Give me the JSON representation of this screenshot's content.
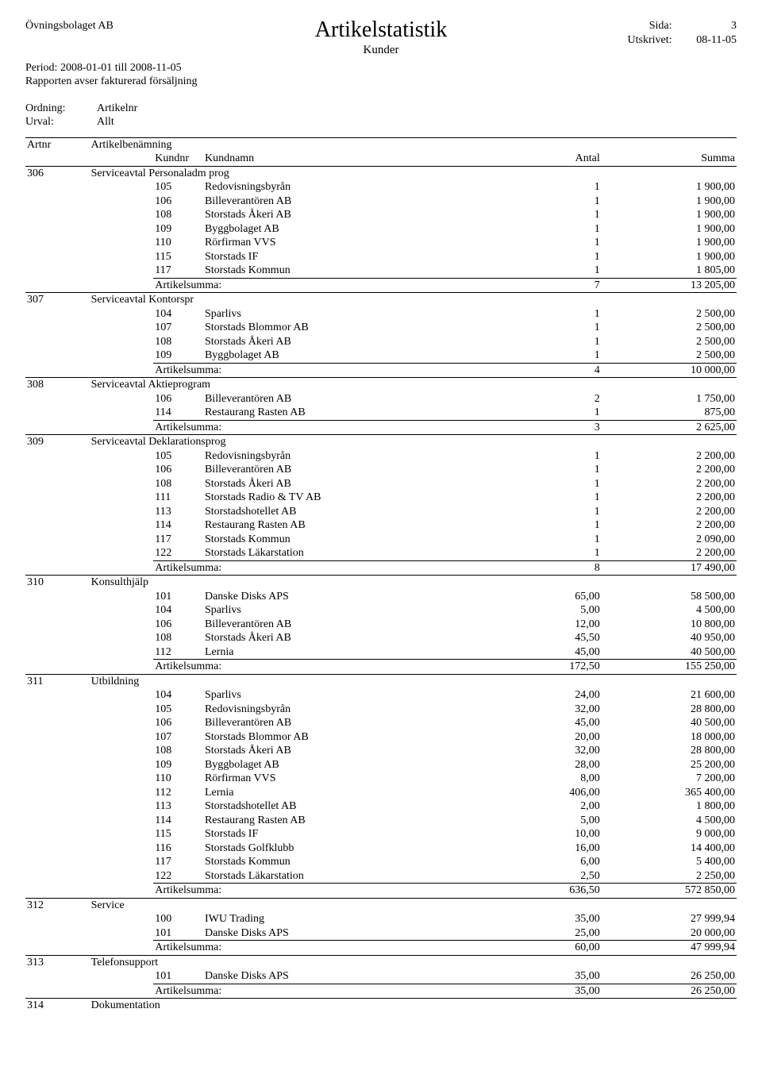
{
  "header": {
    "company": "Övningsbolaget AB",
    "title": "Artikelstatistik",
    "subtitle": "Kunder",
    "page_label": "Sida:",
    "page_value": "3",
    "printed_label": "Utskrivet:",
    "printed_value": "08-11-05",
    "period": "Period: 2008-01-01 till 2008-11-05",
    "scope": "Rapporten avser fakturerad försäljning",
    "ordning_label": "Ordning:",
    "ordning_value": "Artikelnr",
    "urval_label": "Urval:",
    "urval_value": "Allt"
  },
  "columns": {
    "artnr": "Artnr",
    "artikelbenamning": "Artikelbenämning",
    "kundnr": "Kundnr",
    "kundnamn": "Kundnamn",
    "antal": "Antal",
    "summa": "Summa"
  },
  "sum_label": "Artikelsumma:",
  "groups": [
    {
      "artnr": "306",
      "name": "Serviceavtal Personaladm prog",
      "rows": [
        {
          "kundnr": "105",
          "kundnamn": "Redovisningsbyrån",
          "antal": "1",
          "summa": "1 900,00"
        },
        {
          "kundnr": "106",
          "kundnamn": "Billeverantören AB",
          "antal": "1",
          "summa": "1 900,00"
        },
        {
          "kundnr": "108",
          "kundnamn": "Storstads Åkeri AB",
          "antal": "1",
          "summa": "1 900,00"
        },
        {
          "kundnr": "109",
          "kundnamn": "Byggbolaget AB",
          "antal": "1",
          "summa": "1 900,00"
        },
        {
          "kundnr": "110",
          "kundnamn": "Rörfirman VVS",
          "antal": "1",
          "summa": "1 900,00"
        },
        {
          "kundnr": "115",
          "kundnamn": "Storstads IF",
          "antal": "1",
          "summa": "1 900,00"
        },
        {
          "kundnr": "117",
          "kundnamn": "Storstads Kommun",
          "antal": "1",
          "summa": "1 805,00"
        }
      ],
      "sum_antal": "7",
      "sum_summa": "13 205,00"
    },
    {
      "artnr": "307",
      "name": "Serviceavtal Kontorspr",
      "rows": [
        {
          "kundnr": "104",
          "kundnamn": "Sparlivs",
          "antal": "1",
          "summa": "2 500,00"
        },
        {
          "kundnr": "107",
          "kundnamn": "Storstads Blommor AB",
          "antal": "1",
          "summa": "2 500,00"
        },
        {
          "kundnr": "108",
          "kundnamn": "Storstads Åkeri AB",
          "antal": "1",
          "summa": "2 500,00"
        },
        {
          "kundnr": "109",
          "kundnamn": "Byggbolaget AB",
          "antal": "1",
          "summa": "2 500,00"
        }
      ],
      "sum_antal": "4",
      "sum_summa": "10 000,00"
    },
    {
      "artnr": "308",
      "name": "Serviceavtal Aktieprogram",
      "rows": [
        {
          "kundnr": "106",
          "kundnamn": "Billeverantören AB",
          "antal": "2",
          "summa": "1 750,00"
        },
        {
          "kundnr": "114",
          "kundnamn": "Restaurang Rasten AB",
          "antal": "1",
          "summa": "875,00"
        }
      ],
      "sum_antal": "3",
      "sum_summa": "2 625,00"
    },
    {
      "artnr": "309",
      "name": "Serviceavtal Deklarationsprog",
      "rows": [
        {
          "kundnr": "105",
          "kundnamn": "Redovisningsbyrån",
          "antal": "1",
          "summa": "2 200,00"
        },
        {
          "kundnr": "106",
          "kundnamn": "Billeverantören AB",
          "antal": "1",
          "summa": "2 200,00"
        },
        {
          "kundnr": "108",
          "kundnamn": "Storstads Åkeri AB",
          "antal": "1",
          "summa": "2 200,00"
        },
        {
          "kundnr": "111",
          "kundnamn": "Storstads Radio & TV AB",
          "antal": "1",
          "summa": "2 200,00"
        },
        {
          "kundnr": "113",
          "kundnamn": "Storstadshotellet AB",
          "antal": "1",
          "summa": "2 200,00"
        },
        {
          "kundnr": "114",
          "kundnamn": "Restaurang Rasten AB",
          "antal": "1",
          "summa": "2 200,00"
        },
        {
          "kundnr": "117",
          "kundnamn": "Storstads Kommun",
          "antal": "1",
          "summa": "2 090,00"
        },
        {
          "kundnr": "122",
          "kundnamn": "Storstads Läkarstation",
          "antal": "1",
          "summa": "2 200,00"
        }
      ],
      "sum_antal": "8",
      "sum_summa": "17 490,00"
    },
    {
      "artnr": "310",
      "name": "Konsulthjälp",
      "rows": [
        {
          "kundnr": "101",
          "kundnamn": "Danske Disks APS",
          "antal": "65,00",
          "summa": "58 500,00"
        },
        {
          "kundnr": "104",
          "kundnamn": "Sparlivs",
          "antal": "5,00",
          "summa": "4 500,00"
        },
        {
          "kundnr": "106",
          "kundnamn": "Billeverantören AB",
          "antal": "12,00",
          "summa": "10 800,00"
        },
        {
          "kundnr": "108",
          "kundnamn": "Storstads Åkeri AB",
          "antal": "45,50",
          "summa": "40 950,00"
        },
        {
          "kundnr": "112",
          "kundnamn": "Lernia",
          "antal": "45,00",
          "summa": "40 500,00"
        }
      ],
      "sum_antal": "172,50",
      "sum_summa": "155 250,00"
    },
    {
      "artnr": "311",
      "name": "Utbildning",
      "rows": [
        {
          "kundnr": "104",
          "kundnamn": "Sparlivs",
          "antal": "24,00",
          "summa": "21 600,00"
        },
        {
          "kundnr": "105",
          "kundnamn": "Redovisningsbyrån",
          "antal": "32,00",
          "summa": "28 800,00"
        },
        {
          "kundnr": "106",
          "kundnamn": "Billeverantören AB",
          "antal": "45,00",
          "summa": "40 500,00"
        },
        {
          "kundnr": "107",
          "kundnamn": "Storstads Blommor AB",
          "antal": "20,00",
          "summa": "18 000,00"
        },
        {
          "kundnr": "108",
          "kundnamn": "Storstads Åkeri AB",
          "antal": "32,00",
          "summa": "28 800,00"
        },
        {
          "kundnr": "109",
          "kundnamn": "Byggbolaget AB",
          "antal": "28,00",
          "summa": "25 200,00"
        },
        {
          "kundnr": "110",
          "kundnamn": "Rörfirman VVS",
          "antal": "8,00",
          "summa": "7 200,00"
        },
        {
          "kundnr": "112",
          "kundnamn": "Lernia",
          "antal": "406,00",
          "summa": "365 400,00"
        },
        {
          "kundnr": "113",
          "kundnamn": "Storstadshotellet AB",
          "antal": "2,00",
          "summa": "1 800,00"
        },
        {
          "kundnr": "114",
          "kundnamn": "Restaurang Rasten AB",
          "antal": "5,00",
          "summa": "4 500,00"
        },
        {
          "kundnr": "115",
          "kundnamn": "Storstads IF",
          "antal": "10,00",
          "summa": "9 000,00"
        },
        {
          "kundnr": "116",
          "kundnamn": "Storstads Golfklubb",
          "antal": "16,00",
          "summa": "14 400,00"
        },
        {
          "kundnr": "117",
          "kundnamn": "Storstads Kommun",
          "antal": "6,00",
          "summa": "5 400,00"
        },
        {
          "kundnr": "122",
          "kundnamn": "Storstads Läkarstation",
          "antal": "2,50",
          "summa": "2 250,00"
        }
      ],
      "sum_antal": "636,50",
      "sum_summa": "572 850,00"
    },
    {
      "artnr": "312",
      "name": "Service",
      "rows": [
        {
          "kundnr": "100",
          "kundnamn": "IWU Trading",
          "antal": "35,00",
          "summa": "27 999,94"
        },
        {
          "kundnr": "101",
          "kundnamn": "Danske Disks APS",
          "antal": "25,00",
          "summa": "20 000,00"
        }
      ],
      "sum_antal": "60,00",
      "sum_summa": "47 999,94"
    },
    {
      "artnr": "313",
      "name": "Telefonsupport",
      "rows": [
        {
          "kundnr": "101",
          "kundnamn": "Danske Disks APS",
          "antal": "35,00",
          "summa": "26 250,00"
        }
      ],
      "sum_antal": "35,00",
      "sum_summa": "26 250,00"
    },
    {
      "artnr": "314",
      "name": "Dokumentation",
      "rows": [],
      "sum_antal": null,
      "sum_summa": null
    }
  ]
}
